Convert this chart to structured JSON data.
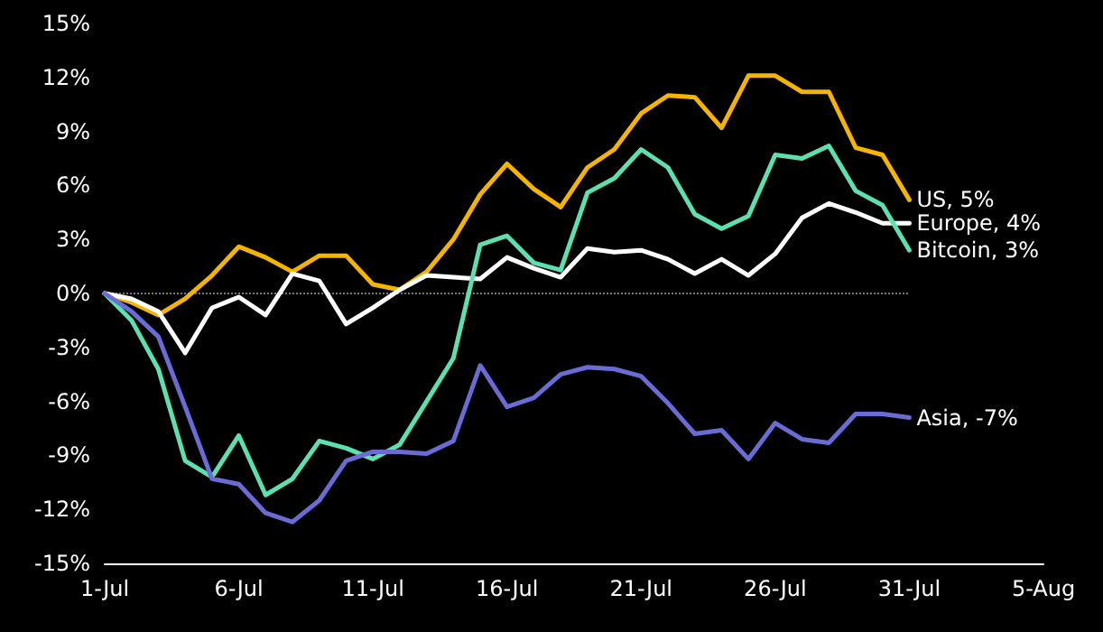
{
  "chart_data": {
    "type": "line",
    "x": [
      "--07-01",
      "--07-02",
      "--07-03",
      "--07-04",
      "--07-05",
      "--07-06",
      "--07-07",
      "--07-08",
      "--07-09",
      "--07-10",
      "--07-11",
      "--07-12",
      "--07-13",
      "--07-14",
      "--07-15",
      "--07-16",
      "--07-17",
      "--07-18",
      "--07-19",
      "--07-20",
      "--07-21",
      "--07-22",
      "--07-23",
      "--07-24",
      "--07-25",
      "--07-26",
      "--07-27",
      "--07-28",
      "--07-29",
      "--07-30",
      "--07-31"
    ],
    "series": [
      {
        "name": "US, 5%",
        "color": "#f5b400",
        "values": [
          0,
          -0.5,
          -1.2,
          -0.3,
          1.0,
          2.6,
          2.0,
          1.2,
          2.1,
          2.1,
          0.5,
          0.2,
          1.2,
          3.0,
          5.5,
          7.2,
          5.8,
          4.8,
          7.0,
          8.0,
          10.0,
          11.0,
          10.9,
          9.2,
          12.1,
          12.1,
          11.2,
          11.2,
          8.1,
          7.7,
          5.2
        ]
      },
      {
        "name": "Europe, 4%",
        "color": "#ffffff",
        "values": [
          0,
          -0.3,
          -1.0,
          -3.3,
          -0.8,
          -0.2,
          -1.2,
          1.1,
          0.7,
          -1.7,
          -0.8,
          0.2,
          1.0,
          0.9,
          0.8,
          2.0,
          1.4,
          0.9,
          2.5,
          2.3,
          2.4,
          1.9,
          1.1,
          1.9,
          1.0,
          2.2,
          4.2,
          5.0,
          4.5,
          3.9,
          3.9
        ]
      },
      {
        "name": "Bitcoin, 3%",
        "color": "#5ce0b0",
        "values": [
          0,
          -1.5,
          -4.2,
          -9.3,
          -10.2,
          -7.9,
          -11.2,
          -10.3,
          -8.2,
          -8.6,
          -9.2,
          -8.4,
          -6.0,
          -3.6,
          2.7,
          3.2,
          1.7,
          1.3,
          5.6,
          6.4,
          8.0,
          7.0,
          4.4,
          3.6,
          4.3,
          7.7,
          7.5,
          8.2,
          5.7,
          4.9,
          2.4
        ]
      },
      {
        "name": "Asia, -7%",
        "color": "#6b6bd6",
        "values": [
          0,
          -1.0,
          -2.4,
          -6.3,
          -10.3,
          -10.6,
          -12.2,
          -12.7,
          -11.5,
          -9.3,
          -8.8,
          -8.8,
          -8.9,
          -8.2,
          -4.0,
          -6.3,
          -5.8,
          -4.5,
          -4.1,
          -4.2,
          -4.6,
          -6.1,
          -7.8,
          -7.6,
          -9.2,
          -7.2,
          -8.1,
          -8.3,
          -6.7,
          -6.7,
          -6.9
        ]
      }
    ],
    "xlim": [
      "--07-01",
      "--08-05"
    ],
    "xticks": [
      {
        "value": "--07-01",
        "label": "1-Jul"
      },
      {
        "value": "--07-06",
        "label": "6-Jul"
      },
      {
        "value": "--07-11",
        "label": "11-Jul"
      },
      {
        "value": "--07-16",
        "label": "16-Jul"
      },
      {
        "value": "--07-21",
        "label": "21-Jul"
      },
      {
        "value": "--07-26",
        "label": "26-Jul"
      },
      {
        "value": "--07-31",
        "label": "31-Jul"
      },
      {
        "value": "--08-05",
        "label": "5-Aug"
      }
    ],
    "ylim": [
      -15,
      15
    ],
    "yticks": [
      {
        "value": -15,
        "label": "-15%"
      },
      {
        "value": -12,
        "label": "-12%"
      },
      {
        "value": -9,
        "label": "-9%"
      },
      {
        "value": -6,
        "label": "-6%"
      },
      {
        "value": -3,
        "label": "-3%"
      },
      {
        "value": 0,
        "label": "0%"
      },
      {
        "value": 3,
        "label": "3%"
      },
      {
        "value": 6,
        "label": "6%"
      },
      {
        "value": 9,
        "label": "9%"
      },
      {
        "value": 12,
        "label": "12%"
      },
      {
        "value": 15,
        "label": "15%"
      }
    ],
    "ref_lines": [
      {
        "axis": "y",
        "value": 0,
        "color": "#777777",
        "line_style": "dotted"
      }
    ],
    "grid": false,
    "legend": false,
    "marker": "none",
    "line_style": "solid"
  }
}
